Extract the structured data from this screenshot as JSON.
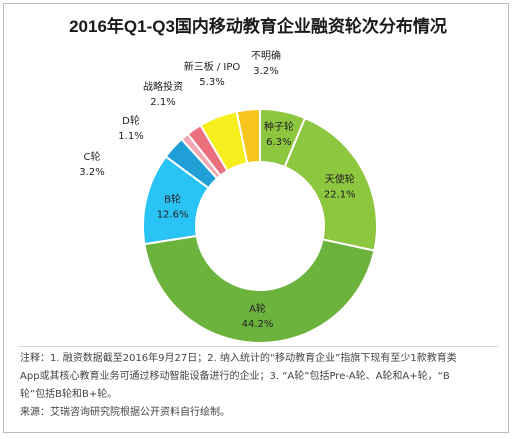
{
  "title": "2016年Q1-Q3国内移动教育企业融资轮次分布情况",
  "chart_data": {
    "type": "pie",
    "title": "2016年Q1-Q3国内移动教育企业融资轮次分布情况",
    "slices": [
      {
        "label": "种子轮",
        "value": 6.3,
        "value_text": "6.3%",
        "color": "#8dc63f"
      },
      {
        "label": "天使轮",
        "value": 22.1,
        "value_text": "22.1%",
        "color": "#8dc63f"
      },
      {
        "label": "A轮",
        "value": 44.2,
        "value_text": "44.2%",
        "color": "#6cb33e"
      },
      {
        "label": "B轮",
        "value": 12.6,
        "value_text": "12.6%",
        "color": "#29c3f5"
      },
      {
        "label": "C轮",
        "value": 3.2,
        "value_text": "3.2%",
        "color": "#1f9fd6"
      },
      {
        "label": "D轮",
        "value": 1.1,
        "value_text": "1.1%",
        "color": "#f3a6b0"
      },
      {
        "label": "战略投资",
        "value": 2.1,
        "value_text": "2.1%",
        "color": "#ec6f7e"
      },
      {
        "label": "新三板 / IPO",
        "value": 5.3,
        "value_text": "5.3%",
        "color": "#f7ee1e"
      },
      {
        "label": "不明确",
        "value": 3.2,
        "value_text": "3.2%",
        "color": "#f7c51d"
      }
    ]
  },
  "notes": {
    "line1": "注释：1. 融资数据截至2016年9月27日；2. 纳入统计的“移动教育企业”指旗下现有至少1款教育类",
    "line2": "App或其核心教育业务可通过移动智能设备进行的企业；3. “A轮”包括Pre-A轮、A轮和A+轮，“B",
    "line3": "轮”包括B轮和B+轮。",
    "line4": "来源：艾瑞咨询研究院根据公开资料自行绘制。"
  }
}
